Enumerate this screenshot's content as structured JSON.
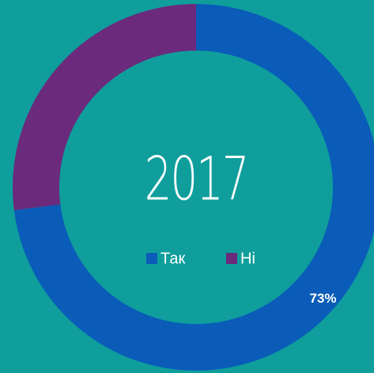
{
  "chart_data": {
    "type": "donut",
    "title": "2017",
    "categories": [
      "Так",
      "Ні"
    ],
    "values": [
      73,
      27
    ],
    "value_labels": [
      "73%",
      null
    ],
    "colors": [
      "#0a5cb8",
      "#6b2a7c"
    ],
    "legend": "center"
  }
}
